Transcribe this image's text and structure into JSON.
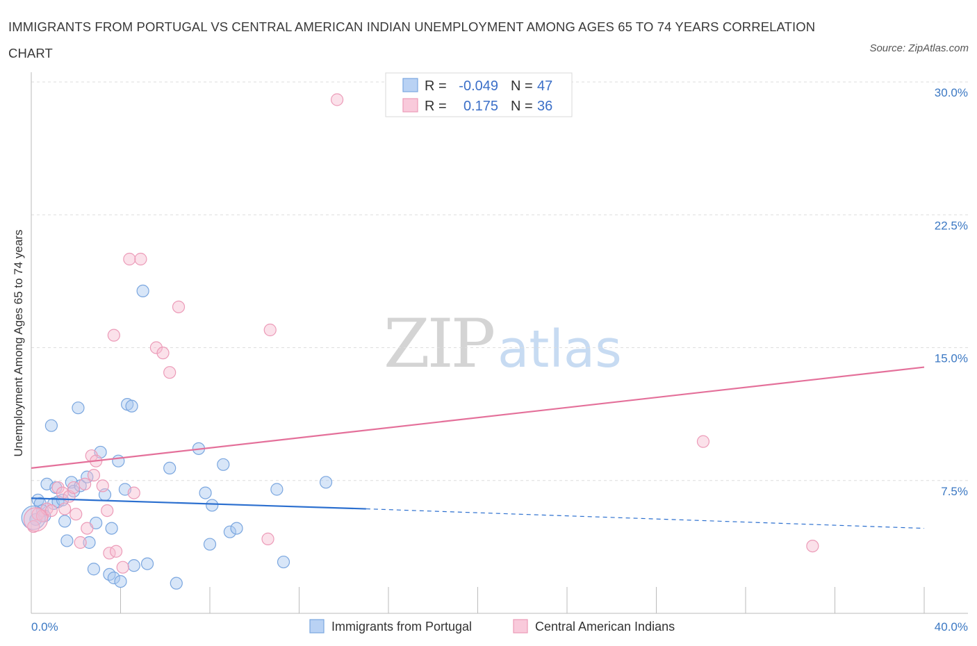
{
  "title": "IMMIGRANTS FROM PORTUGAL VS CENTRAL AMERICAN INDIAN UNEMPLOYMENT AMONG AGES 65 TO 74 YEARS CORRELATION CHART",
  "source": "Source: ZipAtlas.com",
  "watermark": {
    "zip": "ZIP",
    "atlas": "atlas"
  },
  "colors": {
    "blue_fill": "#a9c8f0",
    "blue_stroke": "#7aa6df",
    "blue_line": "#2b6fcf",
    "pink_fill": "#f6bdd0",
    "pink_stroke": "#ec9bb8",
    "pink_line": "#e4709a",
    "grid": "#dddddd",
    "tick_text": "#3b78c3"
  },
  "legend": {
    "rows": [
      {
        "r_label": "R =",
        "r_value": "-0.049",
        "n_label": "N =",
        "n_value": "47",
        "color": "blue"
      },
      {
        "r_label": "R =",
        "r_value": "0.175",
        "n_label": "N =",
        "n_value": "36",
        "color": "pink"
      }
    ]
  },
  "chart_data": {
    "type": "scatter",
    "title": "IMMIGRANTS FROM PORTUGAL VS CENTRAL AMERICAN INDIAN UNEMPLOYMENT AMONG AGES 65 TO 74 YEARS CORRELATION CHART",
    "xlabel": "",
    "ylabel": "Unemployment Among Ages 65 to 74 years",
    "xlim": [
      0,
      40
    ],
    "ylim": [
      0,
      30
    ],
    "x_tick_labels": [
      "0.0%",
      "40.0%"
    ],
    "y_ticks": [
      7.5,
      15.0,
      22.5,
      30.0
    ],
    "y_tick_labels": [
      "7.5%",
      "15.0%",
      "22.5%",
      "30.0%"
    ],
    "grid": true,
    "legend_placement": "top-center",
    "series": [
      {
        "name": "Immigrants from Portugal",
        "color": "blue",
        "trend": {
          "x": [
            0,
            15
          ],
          "y": [
            6.5,
            5.9
          ],
          "dashed_to": [
            40,
            4.8
          ]
        },
        "points": [
          [
            0.2,
            5.3
          ],
          [
            0.3,
            6.4
          ],
          [
            0.4,
            6.2
          ],
          [
            0.5,
            5.8
          ],
          [
            0.6,
            5.5
          ],
          [
            0.7,
            7.3
          ],
          [
            0.9,
            10.6
          ],
          [
            1.0,
            6.2
          ],
          [
            1.1,
            7.1
          ],
          [
            1.2,
            6.3
          ],
          [
            1.4,
            6.4
          ],
          [
            1.5,
            5.2
          ],
          [
            1.6,
            4.1
          ],
          [
            1.8,
            7.4
          ],
          [
            1.9,
            6.9
          ],
          [
            2.1,
            11.6
          ],
          [
            2.2,
            7.2
          ],
          [
            2.5,
            7.7
          ],
          [
            2.6,
            4.0
          ],
          [
            2.8,
            2.5
          ],
          [
            2.9,
            5.1
          ],
          [
            3.1,
            9.1
          ],
          [
            3.3,
            6.7
          ],
          [
            3.5,
            2.2
          ],
          [
            3.6,
            4.8
          ],
          [
            3.7,
            2.0
          ],
          [
            3.9,
            8.6
          ],
          [
            4.0,
            1.8
          ],
          [
            4.2,
            7.0
          ],
          [
            4.3,
            11.8
          ],
          [
            4.5,
            11.7
          ],
          [
            4.6,
            2.7
          ],
          [
            5.0,
            18.2
          ],
          [
            5.2,
            2.8
          ],
          [
            6.2,
            8.2
          ],
          [
            6.5,
            1.7
          ],
          [
            7.5,
            9.3
          ],
          [
            7.8,
            6.8
          ],
          [
            8.0,
            3.9
          ],
          [
            8.1,
            6.1
          ],
          [
            8.6,
            8.4
          ],
          [
            8.9,
            4.6
          ],
          [
            9.2,
            4.8
          ],
          [
            11.0,
            7.0
          ],
          [
            11.3,
            2.9
          ],
          [
            13.2,
            7.4
          ],
          [
            0.1,
            5.4
          ]
        ]
      },
      {
        "name": "Central American Indians",
        "color": "pink",
        "trend": {
          "x": [
            0,
            40
          ],
          "y": [
            8.2,
            13.9
          ]
        },
        "points": [
          [
            0.1,
            4.9
          ],
          [
            0.3,
            5.6
          ],
          [
            0.5,
            5.5
          ],
          [
            0.7,
            5.9
          ],
          [
            0.9,
            5.8
          ],
          [
            1.2,
            7.1
          ],
          [
            1.4,
            6.8
          ],
          [
            1.5,
            5.9
          ],
          [
            1.7,
            6.6
          ],
          [
            1.9,
            7.1
          ],
          [
            2.0,
            5.6
          ],
          [
            2.2,
            4.0
          ],
          [
            2.4,
            7.3
          ],
          [
            2.5,
            4.8
          ],
          [
            2.7,
            8.9
          ],
          [
            2.8,
            7.8
          ],
          [
            2.9,
            8.6
          ],
          [
            3.2,
            7.2
          ],
          [
            3.4,
            5.8
          ],
          [
            3.5,
            3.4
          ],
          [
            3.7,
            15.7
          ],
          [
            3.8,
            3.5
          ],
          [
            4.1,
            2.6
          ],
          [
            4.4,
            20.0
          ],
          [
            4.6,
            6.8
          ],
          [
            4.9,
            20.0
          ],
          [
            5.6,
            15.0
          ],
          [
            5.9,
            14.7
          ],
          [
            6.2,
            13.6
          ],
          [
            6.6,
            17.3
          ],
          [
            10.6,
            4.2
          ],
          [
            10.7,
            16.0
          ],
          [
            13.7,
            29.0
          ],
          [
            30.1,
            9.7
          ],
          [
            35.0,
            3.8
          ],
          [
            0.2,
            5.3
          ]
        ]
      }
    ]
  },
  "bottom_legend": {
    "items": [
      {
        "label": "Immigrants from Portugal",
        "color": "blue"
      },
      {
        "label": "Central American Indians",
        "color": "pink"
      }
    ]
  }
}
